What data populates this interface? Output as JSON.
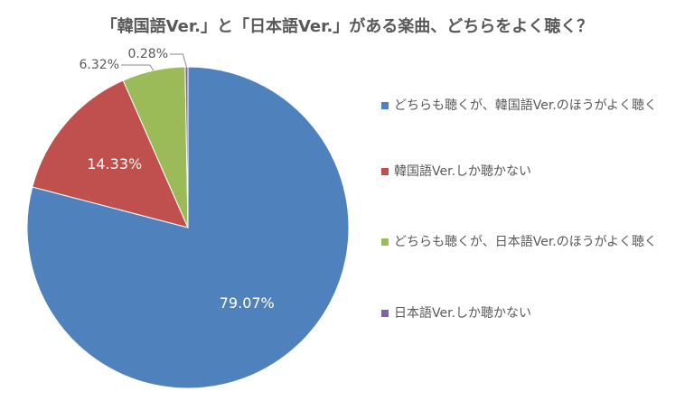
{
  "chart_data": {
    "type": "pie",
    "title": "「韓国語Ver.」と「日本語Ver.」がある楽曲、どちらをよく聴く？",
    "categories": [
      "どちらも聴くが、韓国語Ver.のほうがよく聴く",
      "韓国語Ver.しか聴かない",
      "どちらも聴くが、日本語Ver.のほうがよく聴く",
      "日本語Ver.しか聴かない"
    ],
    "values": [
      79.07,
      14.33,
      6.32,
      0.28
    ],
    "value_labels": [
      "79.07%",
      "14.33%",
      "6.32%",
      "0.28%"
    ],
    "colors": [
      "#4f81bd",
      "#c0504d",
      "#9bbb59",
      "#8064a2"
    ],
    "legend": "right"
  }
}
